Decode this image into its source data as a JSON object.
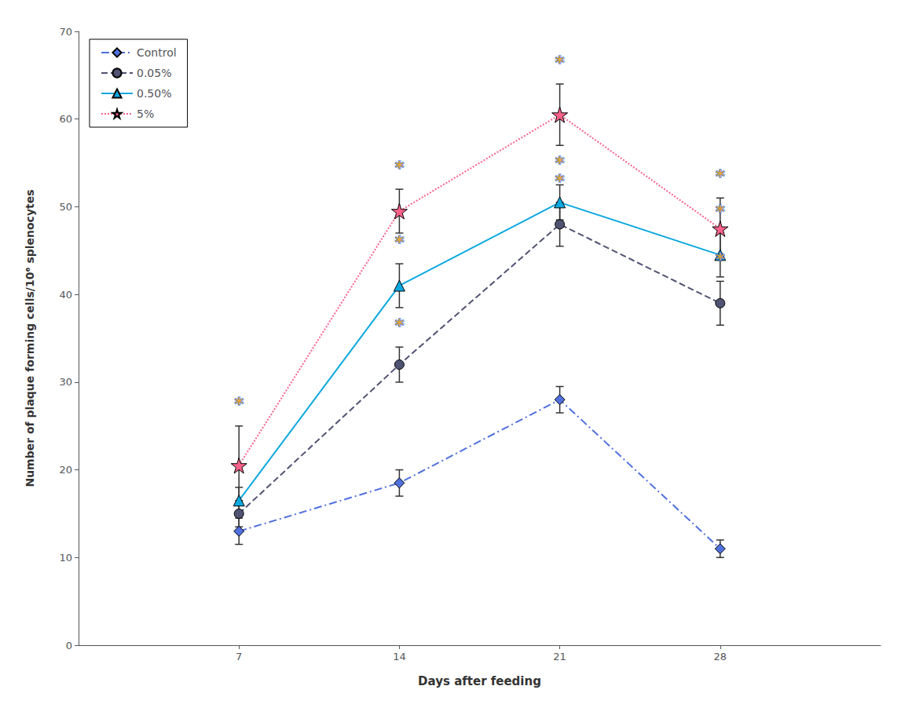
{
  "chart_data": {
    "type": "line",
    "xlabel": "Days after feeding",
    "ylabel": "Number of plaque forming cells/10⁶ splenocytes",
    "x": [
      7,
      14,
      21,
      28
    ],
    "xlim": [
      0,
      35
    ],
    "xticks": [
      7,
      14,
      21,
      28
    ],
    "ylim": [
      0,
      70
    ],
    "yticks": [
      0,
      10,
      20,
      30,
      40,
      50,
      60,
      70
    ],
    "grid": false,
    "legend": "upper left",
    "series": [
      {
        "name": "Control",
        "values": [
          13,
          18.5,
          28,
          11
        ],
        "yerr": [
          1.5,
          1.5,
          1.5,
          1.0
        ],
        "marker": "diamond",
        "line_style": "dashdot"
      },
      {
        "name": "0.05%",
        "values": [
          15,
          32,
          48,
          39
        ],
        "yerr": [
          1.5,
          2.0,
          2.5,
          2.5
        ],
        "marker": "circle",
        "line_style": "dashed"
      },
      {
        "name": "0.50%",
        "values": [
          16.5,
          41,
          50.5,
          44.5
        ],
        "yerr": [
          1.5,
          2.5,
          2.0,
          2.5
        ],
        "marker": "triangle",
        "line_style": "solid"
      },
      {
        "name": "5%",
        "values": [
          20.5,
          49.5,
          60.5,
          47.5
        ],
        "yerr": [
          4.5,
          2.5,
          3.5,
          3.5
        ],
        "marker": "star",
        "line_style": "dotted"
      }
    ],
    "annotations": [
      {
        "text": "*",
        "x": 14,
        "y": 35.5
      },
      {
        "text": "*",
        "x": 21,
        "y": 52
      },
      {
        "text": "*",
        "x": 28,
        "y": 43
      },
      {
        "text": "*",
        "x": 14,
        "y": 45
      },
      {
        "text": "*",
        "x": 21,
        "y": 54
      },
      {
        "text": "*",
        "x": 28,
        "y": 48.5
      },
      {
        "text": "*",
        "x": 7,
        "y": 26.5
      },
      {
        "text": "*",
        "x": 14,
        "y": 53.5
      },
      {
        "text": "*",
        "x": 21,
        "y": 65.5
      },
      {
        "text": "*",
        "x": 28,
        "y": 52.5
      }
    ]
  }
}
